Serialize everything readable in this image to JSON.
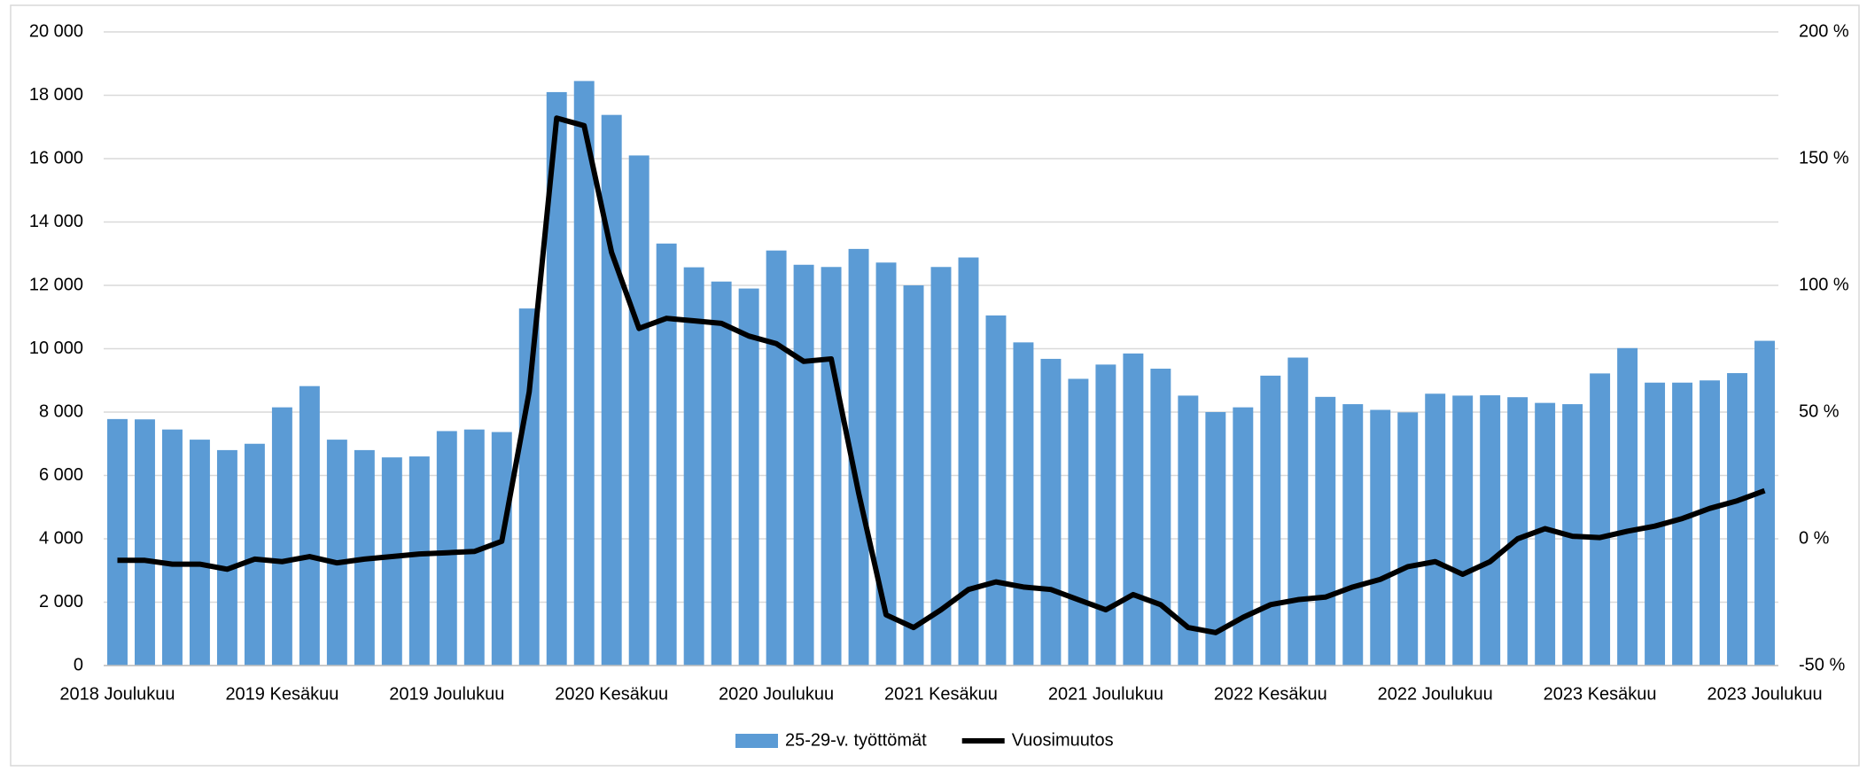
{
  "chart_data": {
    "type": "bar-line",
    "categories": [
      "2018 Joulukuu",
      null,
      null,
      null,
      null,
      null,
      "2019 Kesäkuu",
      null,
      null,
      null,
      null,
      null,
      "2019 Joulukuu",
      null,
      null,
      null,
      null,
      null,
      "2020 Kesäkuu",
      null,
      null,
      null,
      null,
      null,
      "2020 Joulukuu",
      null,
      null,
      null,
      null,
      null,
      "2021 Kesäkuu",
      null,
      null,
      null,
      null,
      null,
      "2021 Joulukuu",
      null,
      null,
      null,
      null,
      null,
      "2022 Kesäkuu",
      null,
      null,
      null,
      null,
      null,
      "2022 Joulukuu",
      null,
      null,
      null,
      null,
      null,
      "2023 Kesäkuu",
      null,
      null,
      null,
      null,
      null,
      "2023 Joulukuu"
    ],
    "series": [
      {
        "name": "25-29-v. työttömät",
        "type": "bar",
        "color": "#5b9bd5",
        "values": [
          7780,
          7770,
          7450,
          7130,
          6800,
          7000,
          8150,
          8820,
          7130,
          6800,
          6570,
          6600,
          7400,
          7450,
          7370,
          11270,
          18100,
          18450,
          17380,
          16100,
          13320,
          12570,
          12120,
          11900,
          13100,
          12650,
          12580,
          13150,
          12720,
          12000,
          12580,
          12880,
          11050,
          10200,
          9680,
          9050,
          9500,
          9850,
          9370,
          8520,
          8000,
          8150,
          9150,
          9720,
          8480,
          8250,
          8070,
          7990,
          8580,
          8520,
          8530,
          8470,
          8290,
          8250,
          9220,
          10020,
          8930,
          8930,
          9000,
          9230,
          10250
        ]
      },
      {
        "name": "Vuosimuutos",
        "type": "line",
        "axis": "y2",
        "color": "#000000",
        "values": [
          -8.5,
          -8.5,
          -10,
          -10,
          -12,
          -8,
          -9,
          -7,
          -9.5,
          -8,
          -7,
          -6,
          -5.5,
          -5,
          -1,
          58,
          166,
          163,
          113,
          83,
          87,
          86,
          85,
          80,
          77,
          70,
          71,
          18,
          -30,
          -35,
          -28,
          -20,
          -17,
          -19,
          -20,
          -24,
          -28,
          -22,
          -26,
          -35,
          -37,
          -31,
          -26,
          -24,
          -23,
          -19,
          -16,
          -11,
          -9,
          -14,
          -9,
          0,
          4,
          1,
          0.5,
          3,
          5,
          8,
          12,
          15,
          19
        ]
      }
    ],
    "ylim": [
      0,
      20000
    ],
    "yticks": [
      0,
      {
        "value": 2000,
        "label": "2 000"
      },
      {
        "value": 4000,
        "label": "4 000"
      },
      {
        "value": 6000,
        "label": "6 000"
      },
      {
        "value": 8000,
        "label": "8 000"
      },
      {
        "value": 10000,
        "label": "10 000"
      },
      {
        "value": 12000,
        "label": "12 000"
      },
      {
        "value": 14000,
        "label": "14 000"
      },
      {
        "value": 16000,
        "label": "16 000"
      },
      {
        "value": 18000,
        "label": "18 000"
      },
      {
        "value": 20000,
        "label": "20 000"
      }
    ],
    "y2lim": [
      -50,
      200
    ],
    "y2ticks": [
      {
        "value": -50,
        "label": "-50 %"
      },
      {
        "value": 0,
        "label": "0 %"
      },
      {
        "value": 50,
        "label": "50 %"
      },
      {
        "value": 100,
        "label": "100 %"
      },
      {
        "value": 150,
        "label": "150 %"
      },
      {
        "value": 200,
        "label": "200 %"
      }
    ],
    "grid": true,
    "legend": "bottom"
  }
}
